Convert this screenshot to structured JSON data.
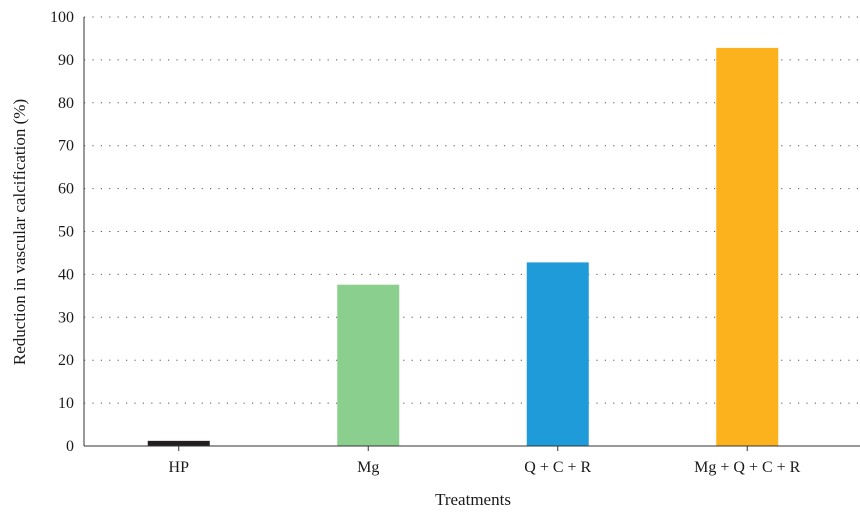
{
  "chart_data": {
    "type": "bar",
    "categories": [
      "HP",
      "Mg",
      "Q + C + R",
      "Mg + Q + C + R"
    ],
    "values": [
      1.2,
      37.6,
      42.8,
      92.8
    ],
    "bar_colors": [
      "#231f20",
      "#8bcf8f",
      "#1f9bd9",
      "#fbb21c"
    ],
    "xlabel": "Treatments",
    "ylabel": "Reduction in vascular calcification (%)",
    "ylim": [
      0,
      100
    ],
    "yticks": [
      0,
      10,
      20,
      30,
      40,
      50,
      60,
      70,
      80,
      90,
      100
    ],
    "grid": "horizontal dotted",
    "legend": "none"
  }
}
